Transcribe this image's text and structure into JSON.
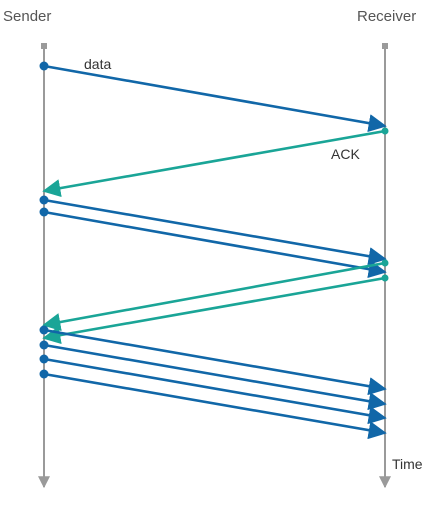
{
  "diagram": {
    "sender_label": "Sender",
    "receiver_label": "Receiver",
    "data_label": "data",
    "ack_label": "ACK",
    "time_label": "Time"
  },
  "colors": {
    "data": "#1167a8",
    "ack": "#1aa597",
    "timeline": "#9a9a9a",
    "text": "#555555"
  },
  "messages": [
    {
      "kind": "data",
      "round": 1
    },
    {
      "kind": "ack",
      "round": 1
    },
    {
      "kind": "data",
      "round": 2
    },
    {
      "kind": "data",
      "round": 2
    },
    {
      "kind": "ack",
      "round": 2
    },
    {
      "kind": "ack",
      "round": 2
    },
    {
      "kind": "data",
      "round": 3
    },
    {
      "kind": "data",
      "round": 3
    },
    {
      "kind": "data",
      "round": 3
    },
    {
      "kind": "data",
      "round": 3
    }
  ]
}
